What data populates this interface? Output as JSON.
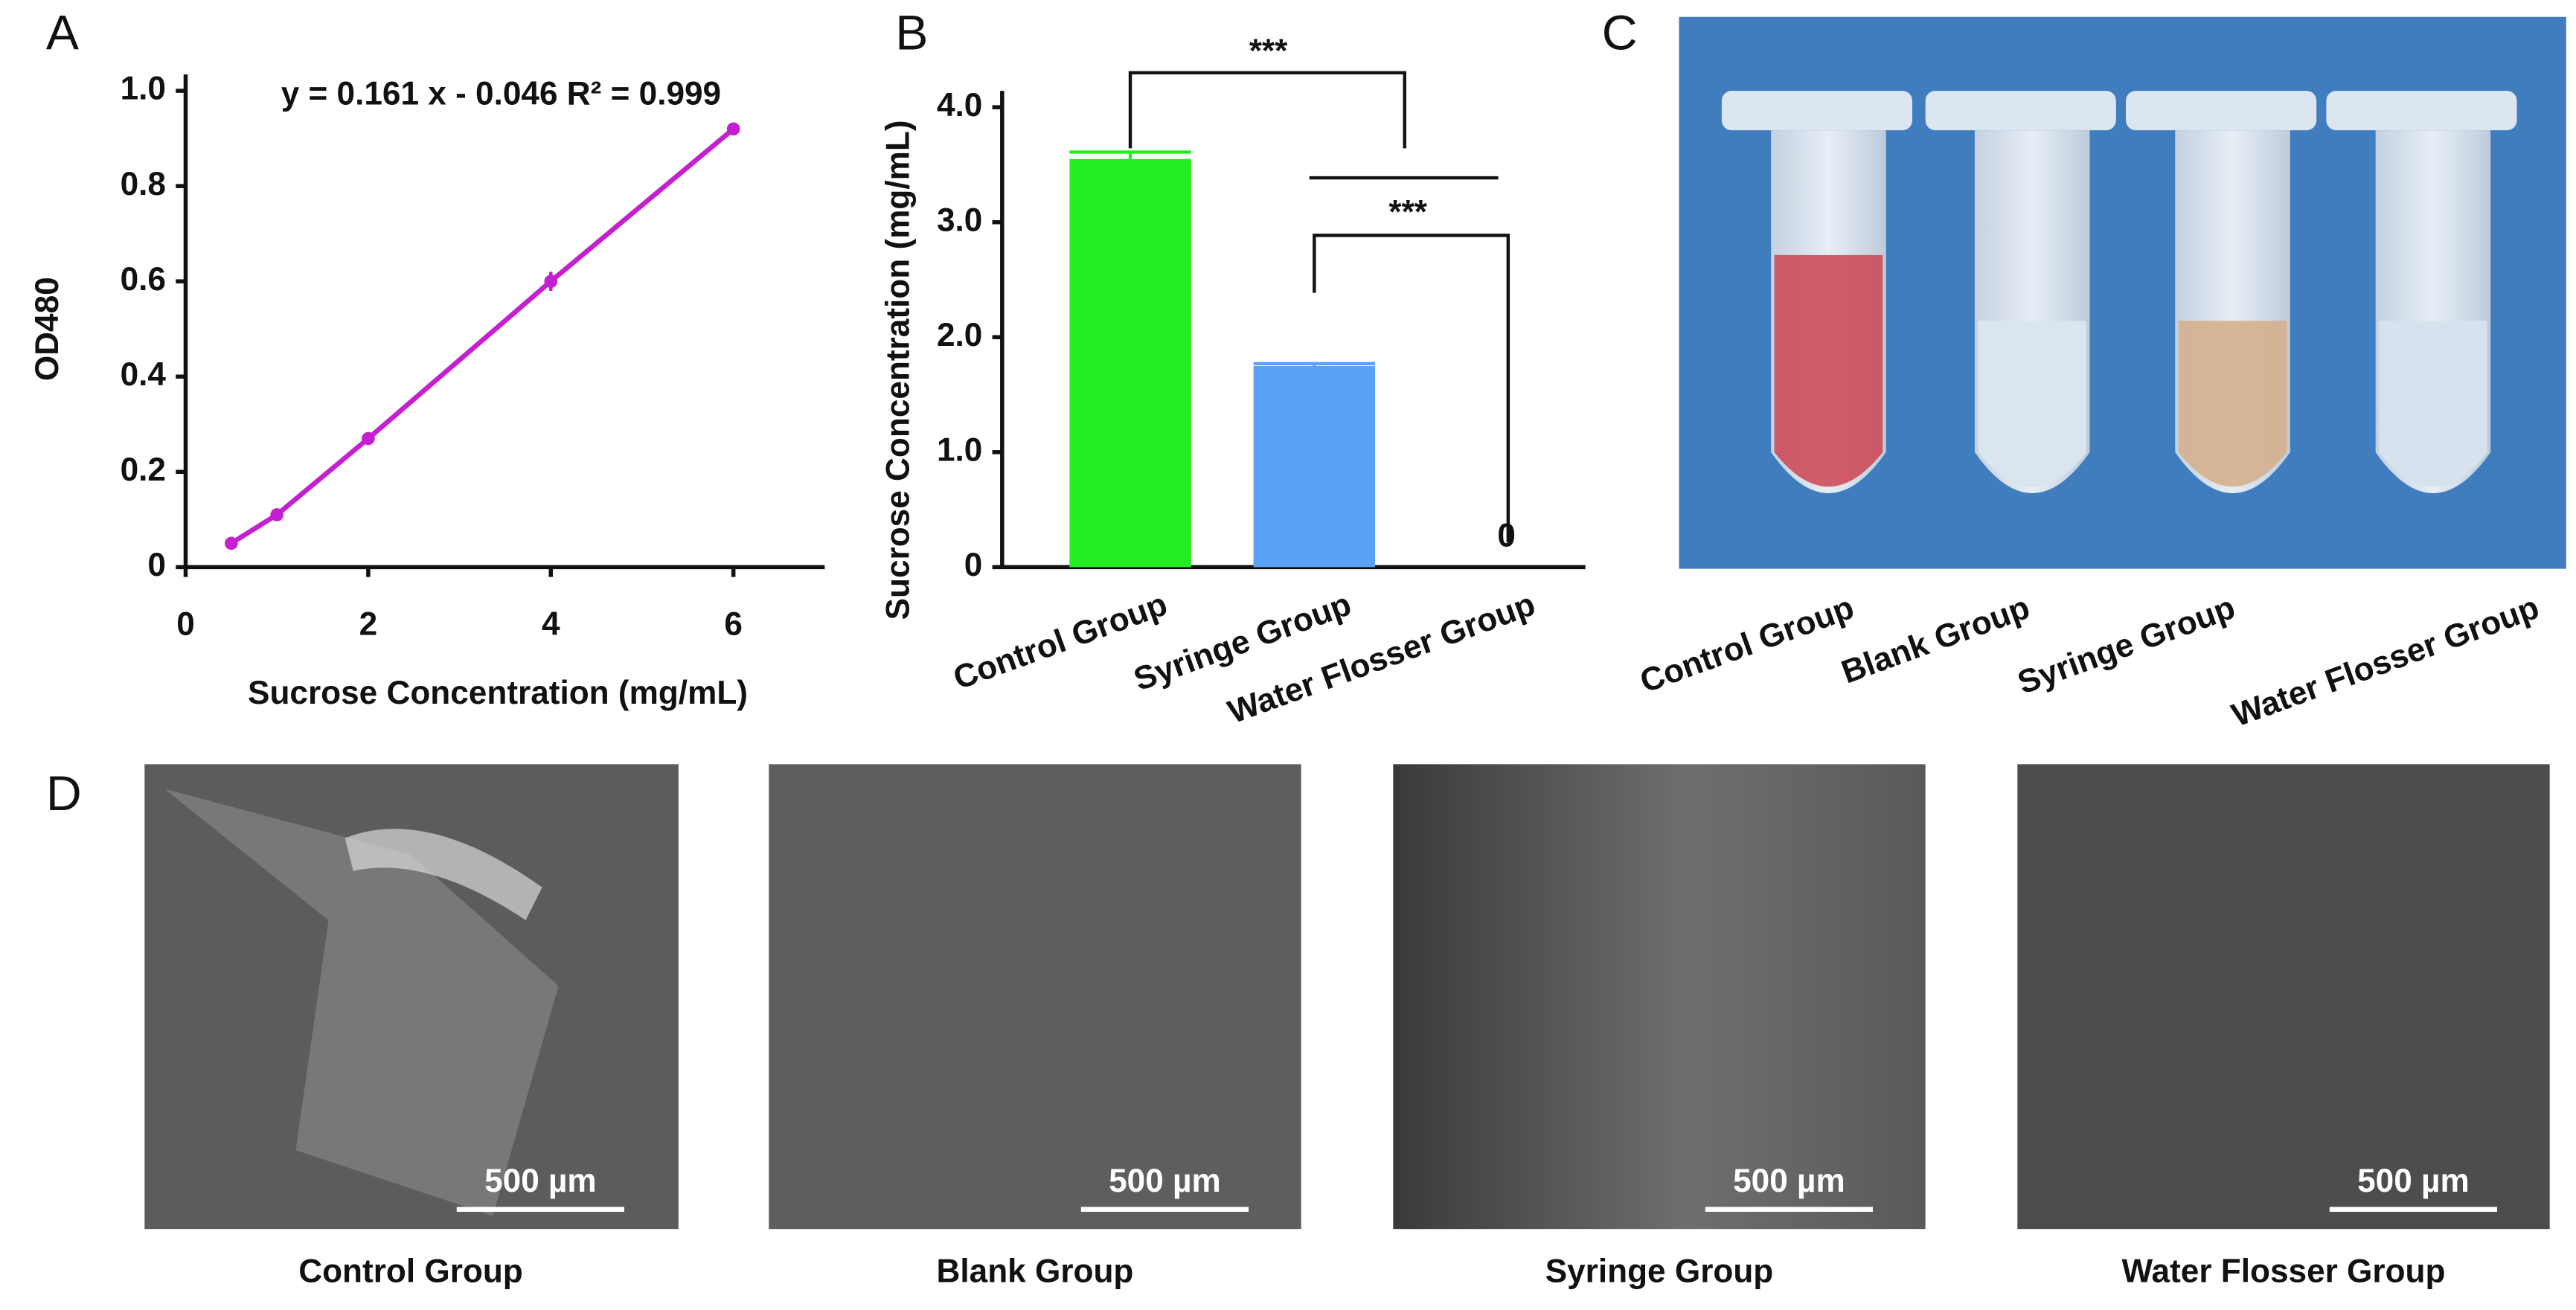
{
  "chart_data": [
    {
      "type": "line",
      "panel_label": "A",
      "annotation": "y = 0.161 x - 0.046  R² = 0.999",
      "x_label": "Sucrose Concentration (mg/mL)",
      "y_label": "OD480",
      "x": [
        0.5,
        1,
        2,
        4,
        6
      ],
      "values": [
        0.05,
        0.11,
        0.27,
        0.6,
        0.92
      ],
      "errors": [
        0.005,
        0.005,
        0.006,
        0.02,
        0.006
      ],
      "color": "#c41fd0",
      "xlim": [
        0,
        7
      ],
      "xticks": [
        0,
        2,
        4,
        6
      ],
      "ylim": [
        0,
        1
      ],
      "yticks": [
        0,
        0.2,
        0.4,
        0.6,
        0.8,
        {
          "value": 1,
          "label": "1.0"
        }
      ]
    },
    {
      "type": "bar",
      "panel_label": "B",
      "y_label": "Sucrose Concentration (mg/mL)",
      "categories": [
        "Control Group",
        "Syringe Group",
        "Water Flosser Group"
      ],
      "values": [
        3.55,
        1.75,
        0
      ],
      "errors": [
        0.06,
        0.02,
        0
      ],
      "colors": [
        "#22ee22",
        "#5aa2f7",
        "#888888"
      ],
      "ylim": [
        0,
        4
      ],
      "yticks": [
        0,
        {
          "value": 1,
          "label": "1.0"
        },
        {
          "value": 2,
          "label": "2.0"
        },
        {
          "value": 3,
          "label": "3.0"
        },
        {
          "value": 4,
          "label": "4.0"
        }
      ],
      "significance": [
        "***",
        "***"
      ]
    }
  ],
  "photo_panel": {
    "label": "C",
    "tubes": [
      "Control Group",
      "Blank Group",
      "Syringe Group",
      "Water Flosser Group"
    ]
  },
  "sem_panel": {
    "label": "D",
    "images": [
      {
        "caption": "Control Group",
        "scale_bar": "500 µm"
      },
      {
        "caption": "Blank Group",
        "scale_bar": "500 µm"
      },
      {
        "caption": "Syringe Group",
        "scale_bar": "500 µm"
      },
      {
        "caption": "Water Flosser Group",
        "scale_bar": "500 µm"
      }
    ]
  }
}
